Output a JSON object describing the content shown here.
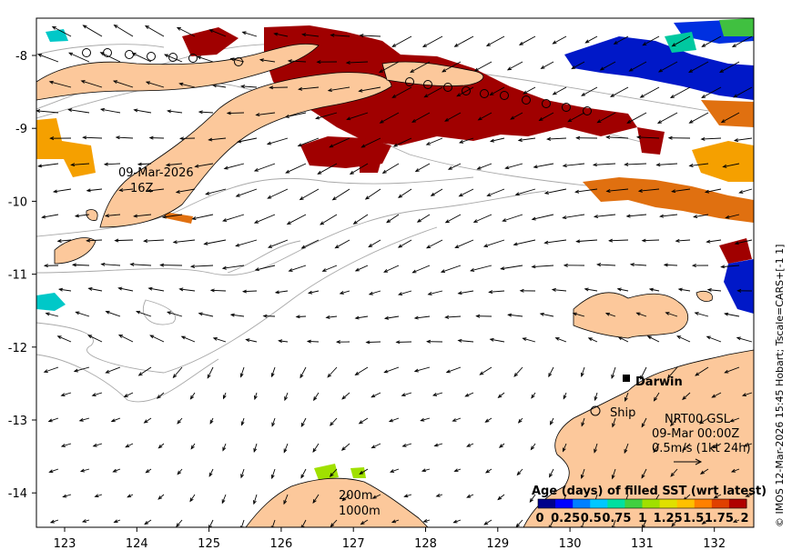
{
  "map": {
    "lon_ticks": [
      "123",
      "124",
      "125",
      "126",
      "127",
      "128",
      "129",
      "130",
      "131",
      "132"
    ],
    "lat_ticks": [
      "-8",
      "-9",
      "-10",
      "-11",
      "-12",
      "-13",
      "-14"
    ],
    "timestamp_label": [
      "09-Mar-2026",
      "16Z"
    ],
    "city_label": "Darwin",
    "ship_label": "Ship",
    "info_lines": [
      "NRT00 GSL",
      "09-Mar 00:00Z",
      "0.5m/s (1kt 24h)"
    ],
    "depth_labels": [
      "200m",
      "1000m"
    ],
    "colorbar": {
      "title": "Age (days) of filled SST (wrt latest)",
      "tick_labels": [
        "0",
        "0.25",
        "0.5",
        "0.75",
        "1",
        "1.25",
        "1.5",
        "1.75",
        "2"
      ],
      "colors": [
        "#00008b",
        "#0000ff",
        "#0080ff",
        "#00c8ff",
        "#00e0a0",
        "#40d040",
        "#a0e000",
        "#e0e000",
        "#ffc000",
        "#ff8000",
        "#e04000",
        "#b00000"
      ]
    },
    "side_credit": "© IMOS 12-Mar-2026 15:45 Hobart; Tscale=CARS+[-1 1]",
    "colors": {
      "land": "#fcc89b",
      "age_2": "#a00000",
      "age_1_5": "#e07010",
      "age_1_25": "#f5a000",
      "age_0_25": "#0018c8",
      "age_0_75": "#00c8c8",
      "age_1": "#40c040"
    }
  }
}
